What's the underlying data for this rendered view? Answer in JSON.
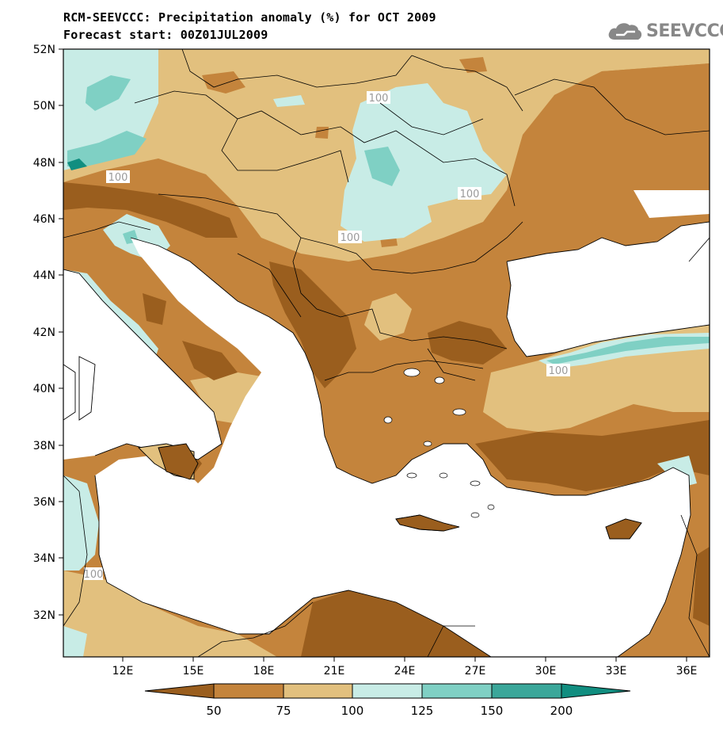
{
  "title_line1": "RCM-SEEVCCC: Precipitation anomaly (%) for OCT 2009",
  "title_line2": "Forecast start: 00Z01JUL2009",
  "logo": {
    "text": "SEEVCCC",
    "icon": "cloud-icon",
    "color": "#888888"
  },
  "lat_labels": [
    "52N",
    "50N",
    "48N",
    "46N",
    "44N",
    "42N",
    "40N",
    "38N",
    "36N",
    "34N",
    "32N"
  ],
  "lon_labels": [
    "12E",
    "15E",
    "18E",
    "21E",
    "24E",
    "27E",
    "30E",
    "33E",
    "36E"
  ],
  "contour_labels": [
    "100",
    "100",
    "100",
    "100",
    "100",
    "100"
  ],
  "colorbar": {
    "labels": [
      "50",
      "75",
      "100",
      "125",
      "150",
      "200"
    ],
    "colors": [
      "#9a5e1e",
      "#c4843c",
      "#e2c07e",
      "#c8ece6",
      "#7fd0c4",
      "#3ba79a",
      "#118e80"
    ]
  }
}
